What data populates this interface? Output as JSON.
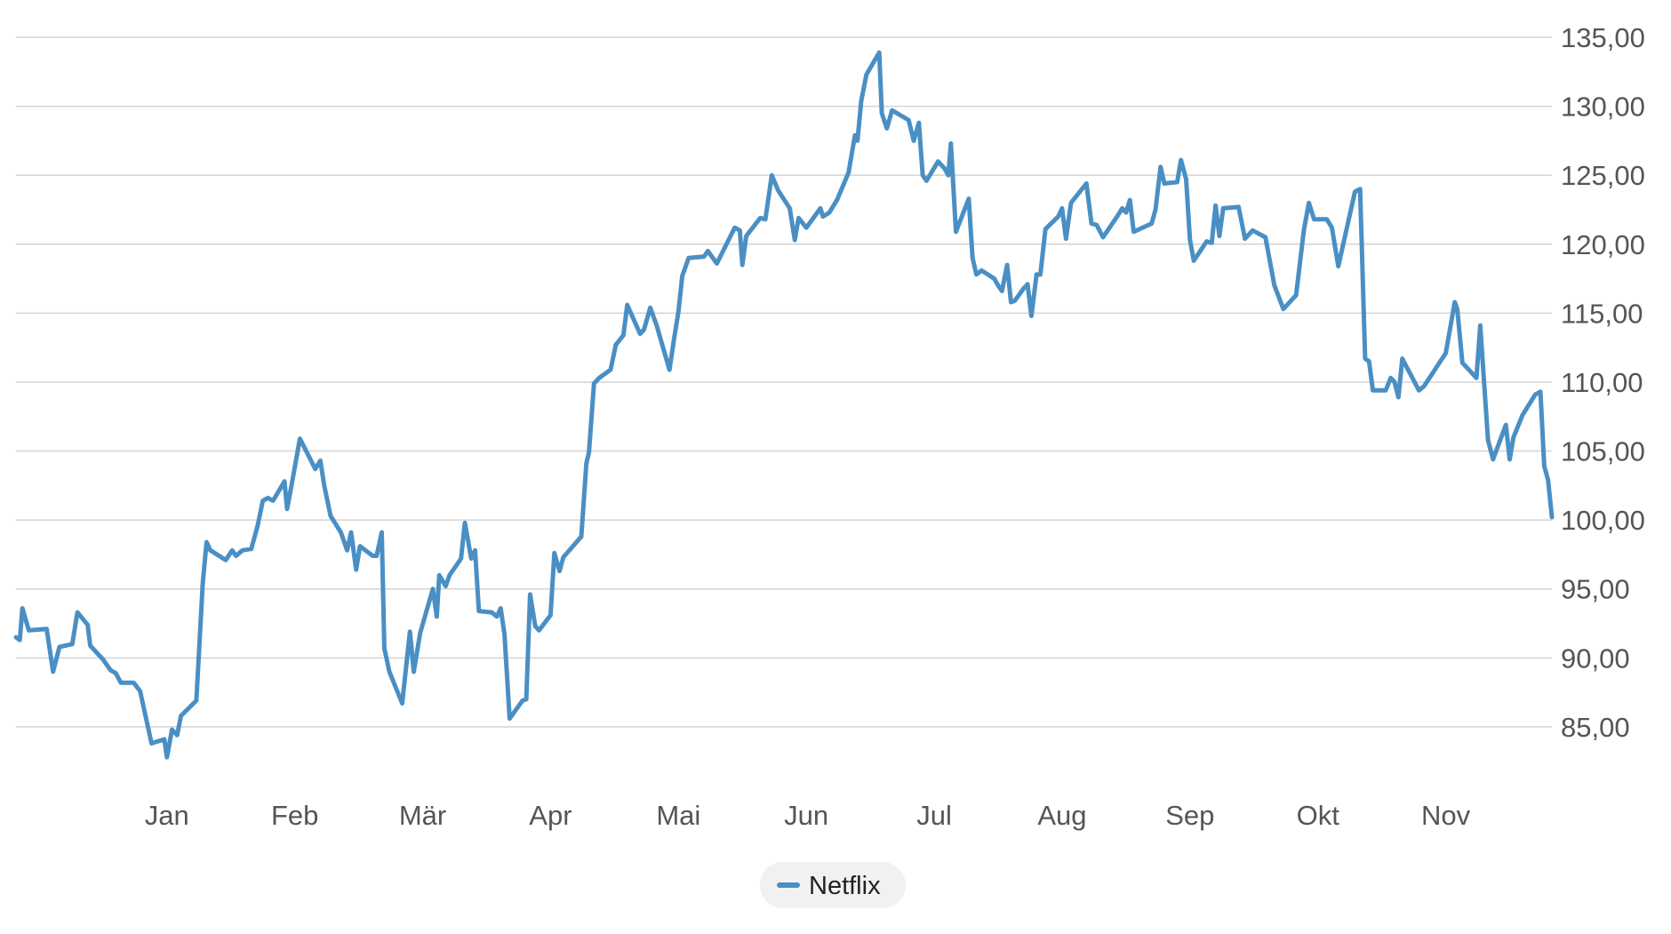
{
  "chart_data": {
    "type": "line",
    "x": [
      -0.18,
      -0.15,
      -0.13,
      -0.08,
      0.06,
      0.11,
      0.16,
      0.26,
      0.3,
      0.38,
      0.4,
      0.5,
      0.56,
      0.6,
      0.64,
      0.74,
      0.79,
      0.88,
      0.98,
      1.0,
      1.04,
      1.08,
      1.11,
      1.23,
      1.28,
      1.31,
      1.34,
      1.46,
      1.51,
      1.54,
      1.59,
      1.66,
      1.71,
      1.75,
      1.79,
      1.83,
      1.92,
      1.94,
      1.98,
      2.04,
      2.16,
      2.2,
      2.23,
      2.28,
      2.36,
      2.41,
      2.44,
      2.48,
      2.51,
      2.61,
      2.64,
      2.68,
      2.7,
      2.74,
      2.84,
      2.9,
      2.93,
      2.98,
      3.08,
      3.11,
      3.13,
      3.18,
      3.21,
      3.3,
      3.33,
      3.38,
      3.41,
      3.44,
      3.54,
      3.58,
      3.61,
      3.64,
      3.68,
      3.78,
      3.81,
      3.84,
      3.88,
      3.91,
      4.0,
      4.03,
      4.07,
      4.1,
      4.24,
      4.28,
      4.3,
      4.34,
      4.38,
      4.47,
      4.51,
      4.57,
      4.6,
      4.7,
      4.73,
      4.78,
      4.83,
      4.93,
      4.97,
      5.0,
      5.03,
      5.08,
      5.2,
      5.23,
      5.3,
      5.44,
      5.48,
      5.5,
      5.53,
      5.64,
      5.68,
      5.73,
      5.78,
      5.87,
      5.91,
      5.94,
      6.0,
      6.11,
      6.13,
      6.18,
      6.24,
      6.33,
      6.38,
      6.4,
      6.43,
      6.47,
      6.57,
      6.59,
      6.63,
      6.67,
      6.8,
      6.84,
      6.88,
      6.91,
      6.94,
      7.03,
      7.08,
      7.11,
      7.13,
      7.17,
      7.27,
      7.3,
      7.33,
      7.37,
      7.47,
      7.5,
      7.53,
      7.57,
      7.6,
      7.63,
      7.7,
      7.73,
      7.76,
      7.8,
      7.83,
      7.87,
      7.97,
      8.0,
      8.03,
      8.07,
      8.19,
      8.23,
      8.27,
      8.32,
      8.43,
      8.47,
      8.5,
      8.53,
      8.56,
      8.7,
      8.73,
      8.77,
      8.8,
      8.9,
      8.93,
      8.97,
      9.0,
      9.03,
      9.13,
      9.17,
      9.2,
      9.23,
      9.26,
      9.38,
      9.43,
      9.49,
      9.59,
      9.66,
      9.73,
      9.83,
      9.89,
      9.93,
      9.97,
      10.07,
      10.11,
      10.16,
      10.29,
      10.33,
      10.37,
      10.4,
      10.43,
      10.53,
      10.57,
      10.6,
      10.63,
      10.66,
      10.79,
      10.83,
      11.0,
      11.07,
      11.09,
      11.13,
      11.24,
      11.27,
      11.33,
      11.37,
      11.47,
      11.5,
      11.53,
      11.6,
      11.7,
      11.74,
      11.77,
      11.8,
      11.83
    ],
    "series": [
      {
        "name": "Netflix",
        "color": "#4a8fc4",
        "values": [
          91.5,
          91.3,
          93.6,
          92.0,
          92.1,
          89.0,
          90.8,
          91.0,
          93.3,
          92.4,
          90.9,
          89.9,
          89.1,
          88.9,
          88.2,
          88.2,
          87.6,
          83.8,
          84.1,
          82.8,
          84.8,
          84.4,
          85.8,
          86.9,
          95.4,
          98.4,
          97.8,
          97.1,
          97.8,
          97.4,
          97.8,
          97.9,
          99.6,
          101.4,
          101.6,
          101.4,
          102.8,
          100.8,
          102.8,
          105.9,
          103.7,
          104.3,
          102.5,
          100.3,
          99.1,
          97.8,
          99.1,
          96.4,
          98.1,
          97.4,
          97.4,
          99.1,
          90.7,
          89.0,
          86.7,
          91.9,
          89.0,
          91.8,
          95.0,
          93.0,
          96.0,
          95.2,
          96.0,
          97.2,
          99.8,
          97.2,
          97.8,
          93.4,
          93.3,
          93.0,
          93.6,
          91.7,
          85.6,
          86.9,
          87.0,
          94.6,
          92.3,
          92.0,
          93.1,
          97.6,
          96.3,
          97.3,
          98.8,
          104.1,
          104.9,
          109.9,
          110.3,
          110.9,
          112.7,
          113.4,
          115.6,
          113.5,
          113.8,
          115.4,
          114.1,
          110.9,
          113.4,
          115.1,
          117.7,
          119.0,
          119.1,
          119.5,
          118.6,
          121.2,
          121.0,
          118.5,
          120.6,
          121.9,
          121.8,
          125.0,
          123.9,
          122.6,
          120.3,
          121.9,
          121.2,
          122.6,
          122.0,
          122.3,
          123.2,
          125.2,
          127.9,
          127.5,
          130.4,
          132.3,
          133.9,
          129.5,
          128.4,
          129.7,
          129.0,
          127.5,
          128.8,
          125.0,
          124.6,
          126.0,
          125.5,
          125.0,
          127.3,
          120.9,
          123.3,
          119.0,
          117.8,
          118.1,
          117.5,
          117.0,
          116.6,
          118.5,
          115.8,
          115.9,
          116.8,
          117.1,
          114.8,
          117.8,
          117.8,
          121.1,
          122.0,
          122.6,
          120.4,
          123.0,
          124.4,
          121.5,
          121.4,
          120.5,
          122.0,
          122.6,
          122.3,
          123.2,
          120.9,
          121.5,
          122.5,
          125.6,
          124.4,
          124.5,
          126.1,
          124.7,
          120.3,
          118.8,
          120.2,
          120.1,
          122.8,
          120.6,
          122.6,
          122.7,
          120.4,
          121.0,
          120.5,
          117.0,
          115.3,
          116.3,
          121.0,
          123.0,
          121.8,
          121.8,
          121.2,
          118.4,
          123.8,
          124.0,
          111.7,
          111.5,
          109.4,
          109.4,
          110.3,
          110.0,
          108.9,
          111.7,
          109.4,
          109.7,
          112.1,
          115.8,
          115.3,
          111.4,
          110.3,
          114.1,
          105.8,
          104.4,
          106.9,
          104.4,
          106.0,
          107.6,
          109.1,
          109.3,
          103.9,
          102.9,
          100.2
        ]
      }
    ],
    "xlim": [
      -0.18,
      11.83
    ],
    "xticks": [
      {
        "value": 1,
        "label": "Jan"
      },
      {
        "value": 2,
        "label": "Feb"
      },
      {
        "value": 3,
        "label": "Mär"
      },
      {
        "value": 4,
        "label": "Apr"
      },
      {
        "value": 5,
        "label": "Mai"
      },
      {
        "value": 6,
        "label": "Jun"
      },
      {
        "value": 7,
        "label": "Jul"
      },
      {
        "value": 8,
        "label": "Aug"
      },
      {
        "value": 9,
        "label": "Sep"
      },
      {
        "value": 10,
        "label": "Okt"
      },
      {
        "value": 11,
        "label": "Nov"
      }
    ],
    "ylim": [
      81,
      135
    ],
    "yticks": [
      {
        "value": 85,
        "label": "85,00"
      },
      {
        "value": 90,
        "label": "90,00"
      },
      {
        "value": 95,
        "label": "95,00"
      },
      {
        "value": 100,
        "label": "100,00"
      },
      {
        "value": 105,
        "label": "105,00"
      },
      {
        "value": 110,
        "label": "110,00"
      },
      {
        "value": 115,
        "label": "115,00"
      },
      {
        "value": 120,
        "label": "120,00"
      },
      {
        "value": 125,
        "label": "125,00"
      },
      {
        "value": 130,
        "label": "130,00"
      },
      {
        "value": 135,
        "label": "135,00"
      }
    ],
    "grid": true,
    "legend": "bottom"
  }
}
